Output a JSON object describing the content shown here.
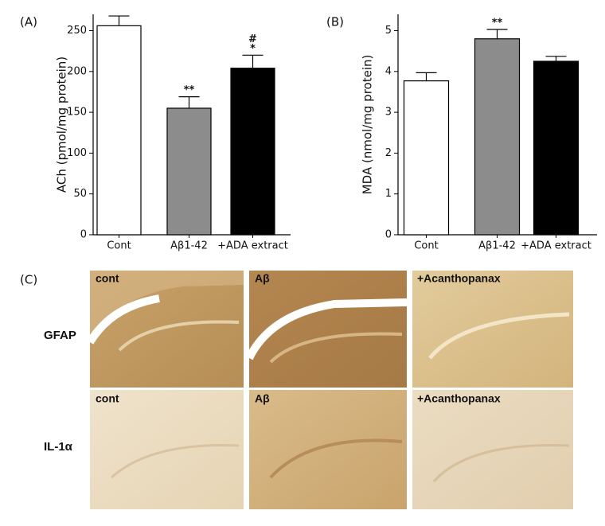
{
  "chart_data": [
    {
      "type": "bar",
      "panel_label": "(A)",
      "y_label": "ACh (pmol/mg protein)",
      "categories": [
        "Cont",
        "Aβ1-42",
        "+ADA extract"
      ],
      "values": [
        256,
        155,
        204
      ],
      "errors": [
        12,
        14,
        16
      ],
      "colors": [
        "#ffffff",
        "#8c8c8c",
        "#000000"
      ],
      "bar_labels": [
        null,
        [
          "**"
        ],
        [
          "#",
          "*"
        ]
      ],
      "ylim": [
        0,
        270
      ],
      "yticks": [
        0,
        50,
        100,
        150,
        200,
        250
      ]
    },
    {
      "type": "bar",
      "panel_label": "(B)",
      "y_label": "MDA (nmol/mg protein)",
      "categories": [
        "Cont",
        "Aβ1-42",
        "+ADA extract"
      ],
      "values": [
        3.77,
        4.8,
        4.25
      ],
      "errors": [
        0.2,
        0.23,
        0.12
      ],
      "colors": [
        "#ffffff",
        "#8c8c8c",
        "#000000"
      ],
      "bar_labels": [
        null,
        [
          "**"
        ],
        null
      ],
      "ylim": [
        0,
        5.4
      ],
      "yticks": [
        0,
        1,
        2,
        3,
        4,
        5
      ]
    }
  ],
  "panel_c": {
    "panel_label": "(C)",
    "rows": [
      "GFAP",
      "IL-1α"
    ],
    "image_labels": [
      [
        "cont",
        "Aβ",
        "+Acanthopanax"
      ],
      [
        "cont",
        "Aβ",
        "+Acanthopanax"
      ]
    ]
  }
}
